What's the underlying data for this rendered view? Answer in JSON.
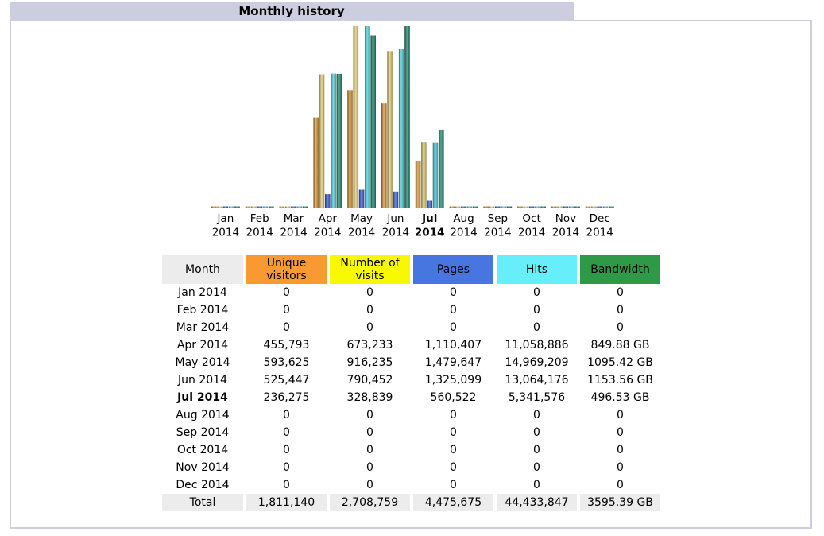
{
  "title": "Monthly history",
  "headers": {
    "month": "Month",
    "unique_visitors": "Unique visitors",
    "visits": "Number of visits",
    "pages": "Pages",
    "hits": "Hits",
    "bandwidth": "Bandwidth"
  },
  "colors": {
    "unique_visitors": "#f89a31",
    "visits": "#f8f800",
    "pages": "#4876e0",
    "hits": "#66eefa",
    "bandwidth": "#2e9a47"
  },
  "current_month": "Jul 2014",
  "rows": [
    {
      "month": "Jan 2014",
      "unique_visitors": "0",
      "visits": "0",
      "pages": "0",
      "hits": "0",
      "bandwidth": "0"
    },
    {
      "month": "Feb 2014",
      "unique_visitors": "0",
      "visits": "0",
      "pages": "0",
      "hits": "0",
      "bandwidth": "0"
    },
    {
      "month": "Mar 2014",
      "unique_visitors": "0",
      "visits": "0",
      "pages": "0",
      "hits": "0",
      "bandwidth": "0"
    },
    {
      "month": "Apr 2014",
      "unique_visitors": "455,793",
      "visits": "673,233",
      "pages": "1,110,407",
      "hits": "11,058,886",
      "bandwidth": "849.88 GB"
    },
    {
      "month": "May 2014",
      "unique_visitors": "593,625",
      "visits": "916,235",
      "pages": "1,479,647",
      "hits": "14,969,209",
      "bandwidth": "1095.42 GB"
    },
    {
      "month": "Jun 2014",
      "unique_visitors": "525,447",
      "visits": "790,452",
      "pages": "1,325,099",
      "hits": "13,064,176",
      "bandwidth": "1153.56 GB"
    },
    {
      "month": "Jul 2014",
      "unique_visitors": "236,275",
      "visits": "328,839",
      "pages": "560,522",
      "hits": "5,341,576",
      "bandwidth": "496.53 GB"
    },
    {
      "month": "Aug 2014",
      "unique_visitors": "0",
      "visits": "0",
      "pages": "0",
      "hits": "0",
      "bandwidth": "0"
    },
    {
      "month": "Sep 2014",
      "unique_visitors": "0",
      "visits": "0",
      "pages": "0",
      "hits": "0",
      "bandwidth": "0"
    },
    {
      "month": "Oct 2014",
      "unique_visitors": "0",
      "visits": "0",
      "pages": "0",
      "hits": "0",
      "bandwidth": "0"
    },
    {
      "month": "Nov 2014",
      "unique_visitors": "0",
      "visits": "0",
      "pages": "0",
      "hits": "0",
      "bandwidth": "0"
    },
    {
      "month": "Dec 2014",
      "unique_visitors": "0",
      "visits": "0",
      "pages": "0",
      "hits": "0",
      "bandwidth": "0"
    }
  ],
  "total": {
    "label": "Total",
    "unique_visitors": "1,811,140",
    "visits": "2,708,759",
    "pages": "4,475,675",
    "hits": "44,433,847",
    "bandwidth": "3595.39 GB"
  },
  "chart_data": {
    "type": "bar",
    "categories": [
      [
        "Jan",
        "2014"
      ],
      [
        "Feb",
        "2014"
      ],
      [
        "Mar",
        "2014"
      ],
      [
        "Apr",
        "2014"
      ],
      [
        "May",
        "2014"
      ],
      [
        "Jun",
        "2014"
      ],
      [
        "Jul",
        "2014"
      ],
      [
        "Aug",
        "2014"
      ],
      [
        "Sep",
        "2014"
      ],
      [
        "Oct",
        "2014"
      ],
      [
        "Nov",
        "2014"
      ],
      [
        "Dec",
        "2014"
      ]
    ],
    "current_index": 6,
    "series": [
      {
        "key": "unique_visitors",
        "values": [
          0,
          0,
          0,
          455793,
          593625,
          525447,
          236275,
          0,
          0,
          0,
          0,
          0
        ],
        "color": "#d89a3a",
        "scale_group": "visitors"
      },
      {
        "key": "visits",
        "values": [
          0,
          0,
          0,
          673233,
          916235,
          790452,
          328839,
          0,
          0,
          0,
          0,
          0
        ],
        "color": "#e2d07a",
        "scale_group": "visitors"
      },
      {
        "key": "pages",
        "values": [
          0,
          0,
          0,
          1110407,
          1479647,
          1325099,
          560522,
          0,
          0,
          0,
          0,
          0
        ],
        "color": "#3a64d6",
        "scale_group": "hits"
      },
      {
        "key": "hits",
        "values": [
          0,
          0,
          0,
          11058886,
          14969209,
          13064176,
          5341576,
          0,
          0,
          0,
          0,
          0
        ],
        "color": "#4fd0dc",
        "scale_group": "hits"
      },
      {
        "key": "bandwidth_gb",
        "values": [
          0,
          0,
          0,
          849.88,
          1095.42,
          1153.56,
          496.53,
          0,
          0,
          0,
          0,
          0
        ],
        "color": "#1e8c6e",
        "scale_group": "bandwidth"
      }
    ]
  }
}
